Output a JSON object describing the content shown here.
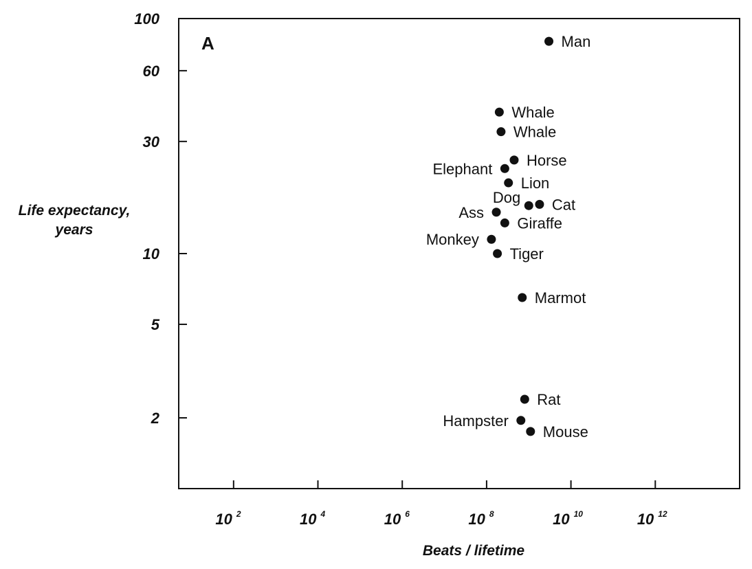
{
  "chart_data": {
    "type": "scatter",
    "panel_label": "A",
    "xlabel": "Beats / lifetime",
    "ylabel_lines": [
      "Life expectancy,",
      "years"
    ],
    "x_scale": "log",
    "y_scale": "log",
    "xlim": [
      5,
      100000000000000
    ],
    "ylim": [
      1,
      100
    ],
    "x_ticks": [
      {
        "value": 100,
        "base": "10",
        "exp": "2"
      },
      {
        "value": 10000,
        "base": "10",
        "exp": "4"
      },
      {
        "value": 1000000,
        "base": "10",
        "exp": "6"
      },
      {
        "value": 100000000,
        "base": "10",
        "exp": "8"
      },
      {
        "value": 10000000000,
        "base": "10",
        "exp": "10"
      },
      {
        "value": 1000000000000,
        "base": "10",
        "exp": "12"
      }
    ],
    "y_ticks": [
      {
        "value": 100,
        "label": "100"
      },
      {
        "value": 60,
        "label": "60"
      },
      {
        "value": 30,
        "label": "30"
      },
      {
        "value": 10,
        "label": "10"
      },
      {
        "value": 5,
        "label": "5"
      },
      {
        "value": 2,
        "label": "2"
      }
    ],
    "grid": false,
    "points": [
      {
        "label": "Man",
        "x": 3000000000,
        "y": 80,
        "label_pos": "right"
      },
      {
        "label": "Whale",
        "x": 200000000,
        "y": 40,
        "label_pos": "right"
      },
      {
        "label": "Whale",
        "x": 220000000,
        "y": 33,
        "label_pos": "right"
      },
      {
        "label": "Horse",
        "x": 450000000,
        "y": 25,
        "label_pos": "right"
      },
      {
        "label": "Elephant",
        "x": 270000000,
        "y": 23,
        "label_pos": "left"
      },
      {
        "label": "Lion",
        "x": 330000000,
        "y": 20,
        "label_pos": "right"
      },
      {
        "label": "Dog",
        "x": 1000000000,
        "y": 16,
        "label_pos": "upper-left"
      },
      {
        "label": "Cat",
        "x": 1800000000,
        "y": 16.2,
        "label_pos": "right"
      },
      {
        "label": "Ass",
        "x": 170000000,
        "y": 15,
        "label_pos": "left"
      },
      {
        "label": "Giraffe",
        "x": 270000000,
        "y": 13.5,
        "label_pos": "right"
      },
      {
        "label": "Monkey",
        "x": 130000000,
        "y": 11.5,
        "label_pos": "left"
      },
      {
        "label": "Tiger",
        "x": 180000000,
        "y": 10,
        "label_pos": "right"
      },
      {
        "label": "Marmot",
        "x": 700000000,
        "y": 6.5,
        "label_pos": "right"
      },
      {
        "label": "Rat",
        "x": 800000000,
        "y": 2.4,
        "label_pos": "right"
      },
      {
        "label": "Hampster",
        "x": 650000000,
        "y": 1.95,
        "label_pos": "left"
      },
      {
        "label": "Mouse",
        "x": 1100000000,
        "y": 1.75,
        "label_pos": "right"
      }
    ]
  }
}
